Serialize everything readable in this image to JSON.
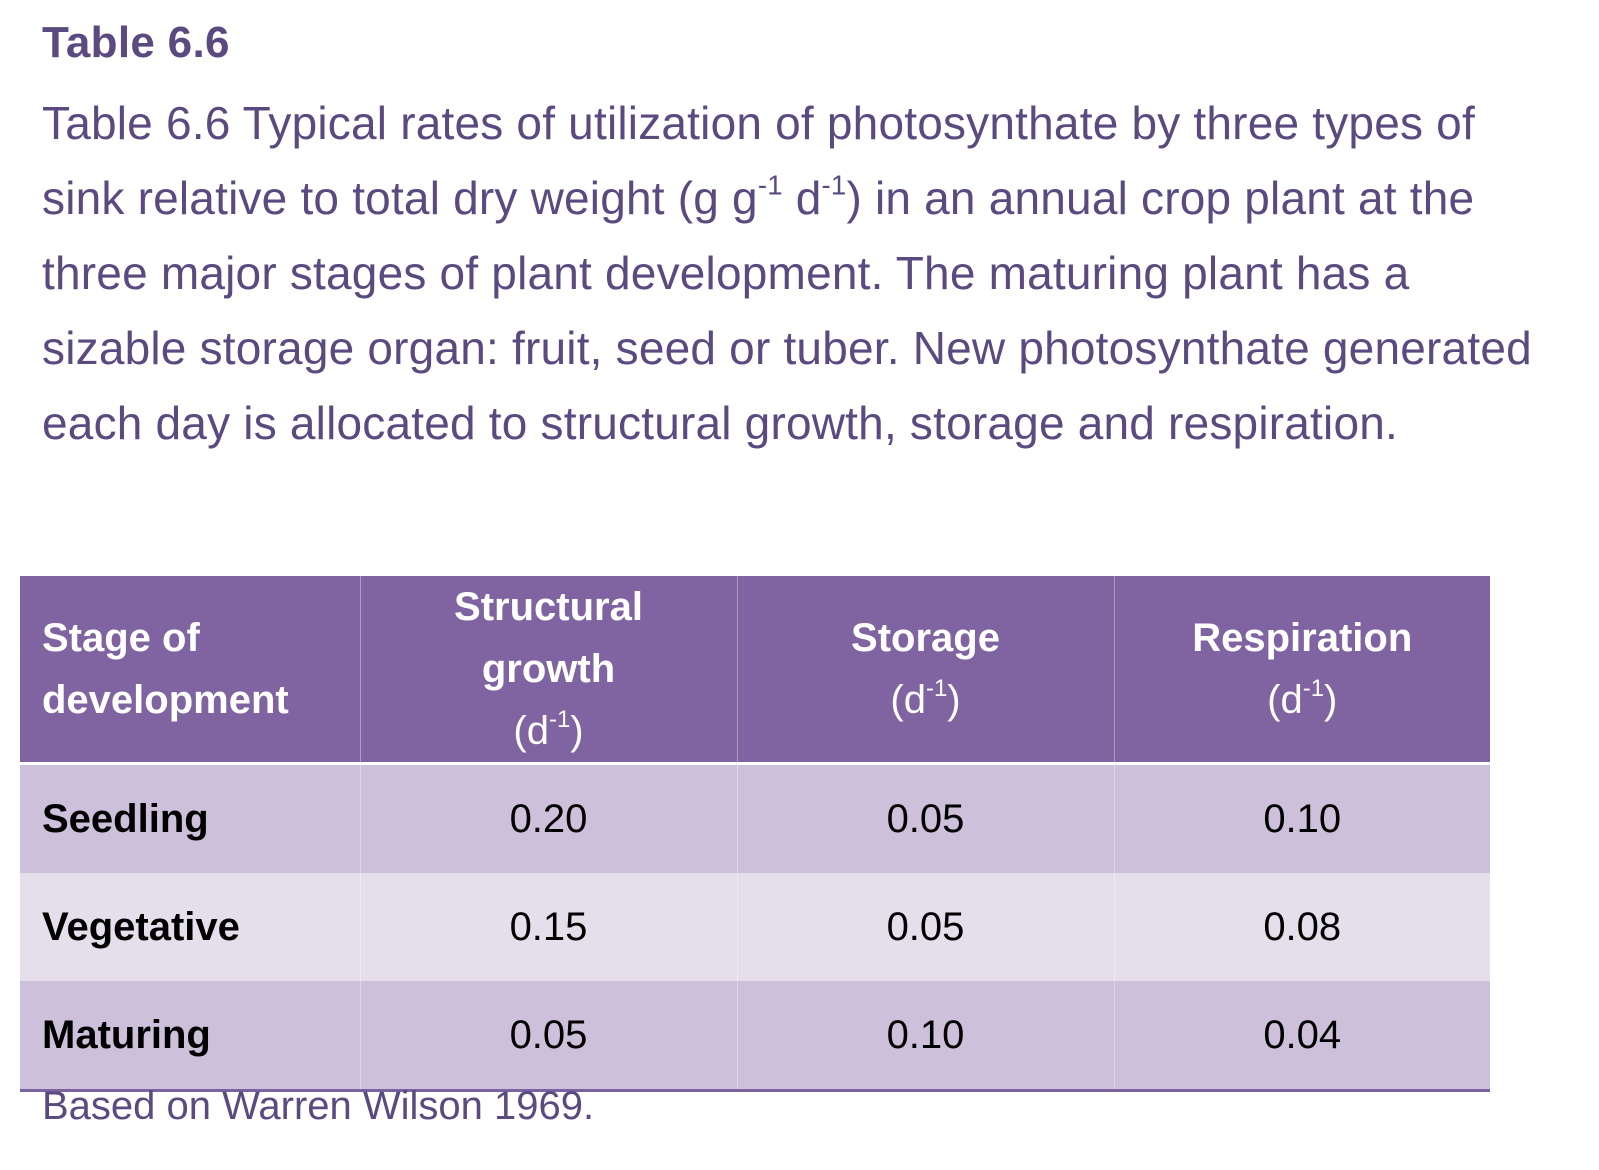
{
  "title": "Table 6.6",
  "caption": {
    "part1": "Table 6.6 Typical rates of utilization of photosynthate by three types of sink relative to total dry weight (g g",
    "sup1": "-1",
    "part2": " d",
    "sup2": "-1",
    "part3": ") in an annual crop plant at the three major stages of plant development. The maturing plant has a sizable storage organ: fruit, seed or tuber. New photosynthate generated each day is allocated to structural growth, storage and respiration."
  },
  "table": {
    "headers": [
      {
        "line1": "Stage of",
        "line2": "development"
      },
      {
        "line1": "Structural growth",
        "unit_pre": "(d",
        "unit_sup": "-1",
        "unit_post": ")"
      },
      {
        "line1": "Storage",
        "unit_pre": "(d",
        "unit_sup": "-1",
        "unit_post": ")"
      },
      {
        "line1": "Respiration",
        "unit_pre": "(d",
        "unit_sup": "-1",
        "unit_post": ")"
      }
    ],
    "rows": [
      {
        "stage": "Seedling",
        "structural": "0.20",
        "storage": "0.05",
        "respiration": "0.10"
      },
      {
        "stage": "Vegetative",
        "structural": "0.15",
        "storage": "0.05",
        "respiration": "0.08"
      },
      {
        "stage": "Maturing",
        "structural": "0.05",
        "storage": "0.10",
        "respiration": "0.04"
      }
    ]
  },
  "source": "Based on Warren Wilson 1969.",
  "colors": {
    "accent_text": "#5b4a80",
    "header_bg": "#8064a1",
    "row_dark": "#ccc0da",
    "row_light": "#e5dfec"
  }
}
